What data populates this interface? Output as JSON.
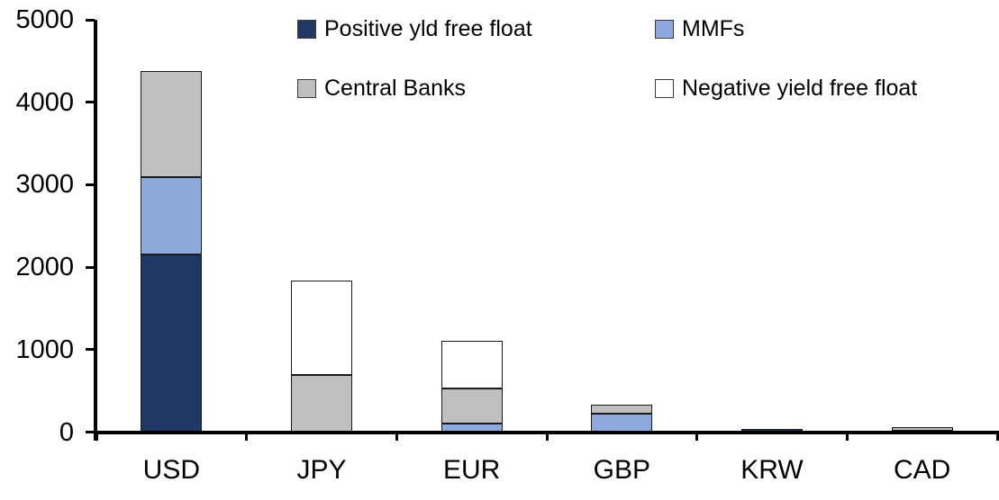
{
  "chart_data": {
    "type": "bar",
    "stacked": true,
    "title": "",
    "xlabel": "",
    "ylabel": "",
    "categories": [
      "USD",
      "JPY",
      "EUR",
      "GBP",
      "KRW",
      "CAD"
    ],
    "series": [
      {
        "name": "Positive yld free float",
        "color": "#1F3864",
        "values": [
          2150,
          0,
          0,
          0,
          40,
          20
        ]
      },
      {
        "name": "MMFs",
        "color": "#8EAADC",
        "values": [
          940,
          0,
          100,
          220,
          0,
          0
        ]
      },
      {
        "name": "Central Banks",
        "color": "#BFBFBF",
        "values": [
          1290,
          690,
          430,
          110,
          0,
          40
        ]
      },
      {
        "name": "Negative yield free float",
        "color": "#FFFFFF",
        "values": [
          0,
          1150,
          580,
          0,
          0,
          0
        ]
      }
    ],
    "totals": [
      4380,
      1840,
      1110,
      330,
      40,
      60
    ],
    "ylim": [
      0,
      5000
    ],
    "ytick_step": 1000,
    "ytick_labels": [
      "0",
      "1000",
      "2000",
      "3000",
      "4000",
      "5000"
    ],
    "grid": false,
    "legend_position": "top",
    "axis_color": "#000000",
    "bar_outline_color": "#000000",
    "background_color": "#FFFFFF"
  }
}
